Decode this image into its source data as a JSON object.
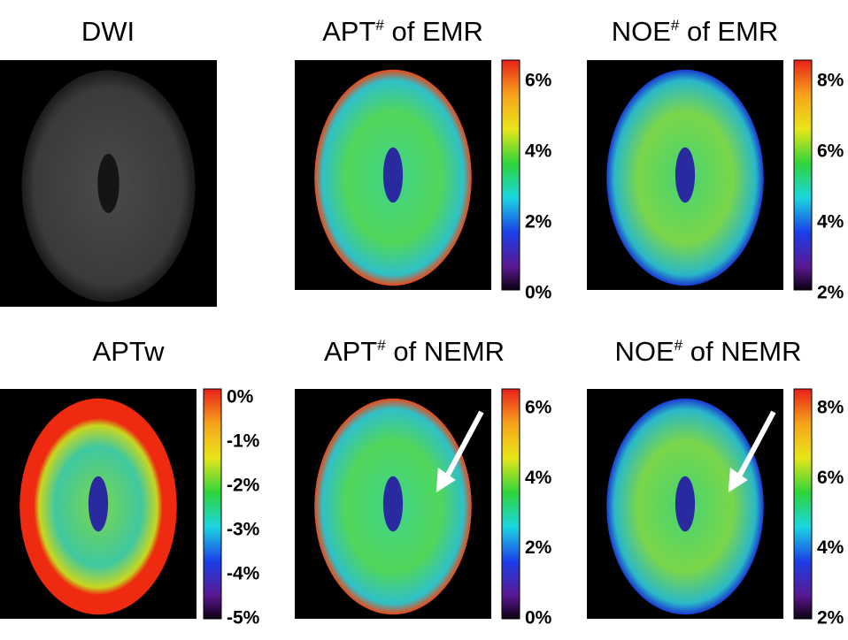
{
  "panels": [
    {
      "title": {
        "base": "DWI"
      }
    },
    {
      "title": {
        "base": "APT",
        "sup": "#",
        "rest": " of EMR"
      },
      "colorbar": [
        "6%",
        "4%",
        "2%",
        "0%"
      ]
    },
    {
      "title": {
        "base": "NOE",
        "sup": "#",
        "rest": " of EMR"
      },
      "colorbar": [
        "8%",
        "6%",
        "4%",
        "2%"
      ]
    },
    {
      "title": {
        "base": "APTw"
      },
      "colorbar": [
        "0%",
        "-1%",
        "-2%",
        "-3%",
        "-4%",
        "-5%"
      ]
    },
    {
      "title": {
        "base": "APT",
        "sup": "#",
        "rest": " of NEMR"
      },
      "colorbar": [
        "6%",
        "4%",
        "2%",
        "0%"
      ]
    },
    {
      "title": {
        "base": "NOE",
        "sup": "#",
        "rest": " of NEMR"
      },
      "colorbar": [
        "8%",
        "6%",
        "4%",
        "2%"
      ]
    }
  ]
}
